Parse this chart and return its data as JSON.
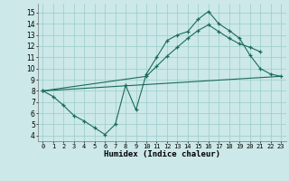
{
  "xlabel": "Humidex (Indice chaleur)",
  "background_color": "#cce8e8",
  "grid_color": "#99cccc",
  "line_color": "#1a6b5a",
  "xlim": [
    -0.5,
    23.5
  ],
  "ylim": [
    3.5,
    15.8
  ],
  "xticks": [
    0,
    1,
    2,
    3,
    4,
    5,
    6,
    7,
    8,
    9,
    10,
    11,
    12,
    13,
    14,
    15,
    16,
    17,
    18,
    19,
    20,
    21,
    22,
    23
  ],
  "yticks": [
    4,
    5,
    6,
    7,
    8,
    9,
    10,
    11,
    12,
    13,
    14,
    15
  ],
  "line1_x": [
    0,
    1,
    2,
    3,
    4,
    5,
    6,
    7,
    8,
    9,
    10,
    11,
    12,
    13,
    14,
    15,
    16,
    17,
    18,
    19,
    20,
    21,
    22,
    23
  ],
  "line1_y": [
    8.0,
    7.5,
    6.7,
    5.8,
    5.3,
    4.7,
    4.1,
    5.0,
    8.5,
    6.3,
    9.5,
    11.0,
    12.5,
    13.0,
    13.3,
    14.4,
    15.1,
    14.0,
    13.4,
    12.7,
    11.2,
    10.0,
    9.5,
    9.3
  ],
  "line2_x": [
    0,
    23
  ],
  "line2_y": [
    8.0,
    9.3
  ],
  "line3_x": [
    0,
    10,
    11,
    12,
    13,
    14,
    15,
    16,
    17,
    18,
    19,
    20,
    21
  ],
  "line3_y": [
    8.0,
    9.3,
    10.2,
    11.1,
    11.9,
    12.7,
    13.4,
    13.9,
    13.3,
    12.7,
    12.2,
    11.9,
    11.5
  ]
}
